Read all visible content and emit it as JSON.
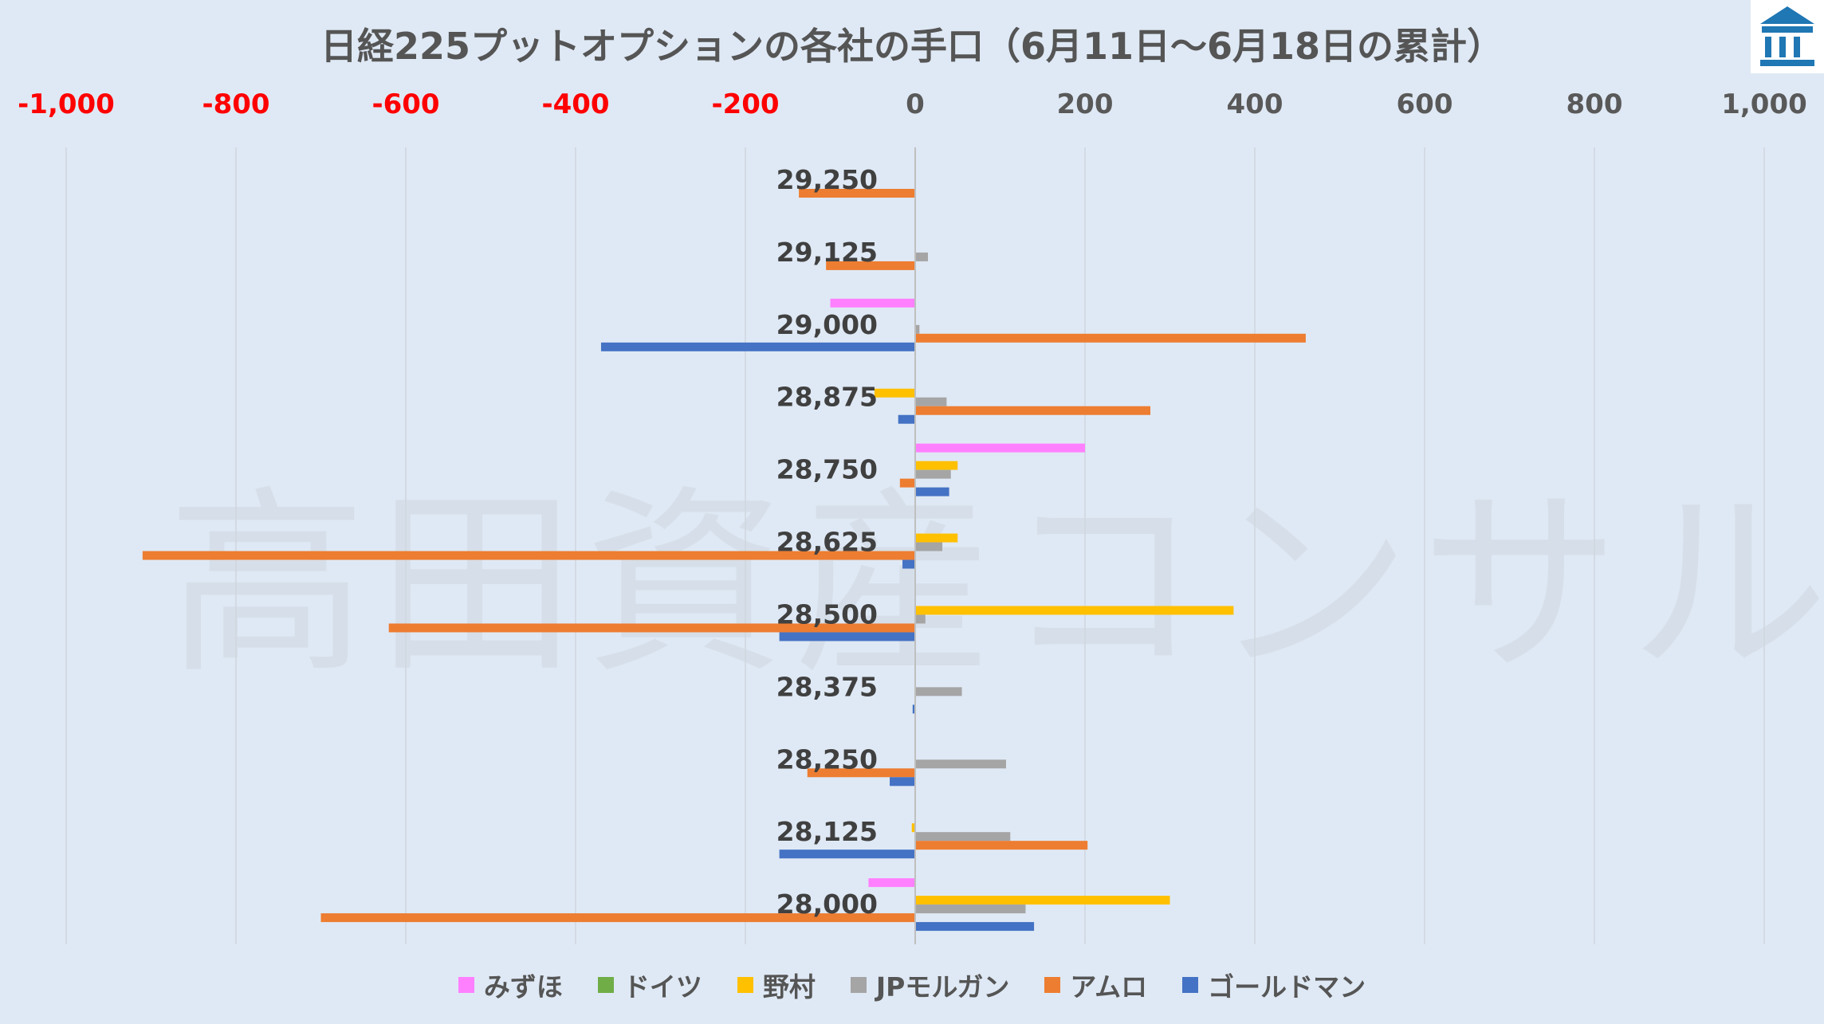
{
  "chart_data": {
    "type": "bar",
    "orientation": "horizontal",
    "title": "日経225プットオプションの各社の手口（6月11日～6月18日の累計）",
    "xlim": [
      -1000,
      1000
    ],
    "x_ticks": [
      "-1,000",
      "-800",
      "-600",
      "-400",
      "-200",
      "0",
      "200",
      "400",
      "600",
      "800",
      "1,000"
    ],
    "negative_tick_color": "#ff0000",
    "positive_tick_color": "#595959",
    "grid": true,
    "legend_position": "bottom",
    "categories": [
      "29,250",
      "29,125",
      "29,000",
      "28,875",
      "28,750",
      "28,625",
      "28,500",
      "28,375",
      "28,250",
      "28,125",
      "28,000"
    ],
    "series": [
      {
        "name": "みずほ",
        "color": "#ff80ff",
        "values": [
          0,
          0,
          -100,
          0,
          200,
          0,
          0,
          0,
          0,
          0,
          -55
        ]
      },
      {
        "name": "ドイツ",
        "color": "#70ad47",
        "values": [
          0,
          0,
          0,
          0,
          0,
          0,
          0,
          0,
          0,
          0,
          0
        ]
      },
      {
        "name": "野村",
        "color": "#ffc000",
        "values": [
          0,
          0,
          0,
          -48,
          50,
          50,
          375,
          0,
          0,
          -4,
          300
        ]
      },
      {
        "name": "JPモルガン",
        "color": "#a5a5a5",
        "values": [
          0,
          15,
          5,
          37,
          42,
          32,
          12,
          55,
          107,
          112,
          130
        ]
      },
      {
        "name": "アムロ",
        "color": "#ed7d31",
        "values": [
          -137,
          -105,
          460,
          277,
          -18,
          -910,
          -620,
          0,
          -127,
          203,
          -700
        ]
      },
      {
        "name": "ゴールドマン",
        "color": "#4472c4",
        "values": [
          0,
          0,
          -370,
          -20,
          40,
          -15,
          -160,
          -3,
          -30,
          -160,
          140
        ]
      }
    ]
  },
  "watermark": "高田資産コンサル",
  "logo": {
    "icon": "building-logo-icon",
    "color": "#1f77b4"
  }
}
